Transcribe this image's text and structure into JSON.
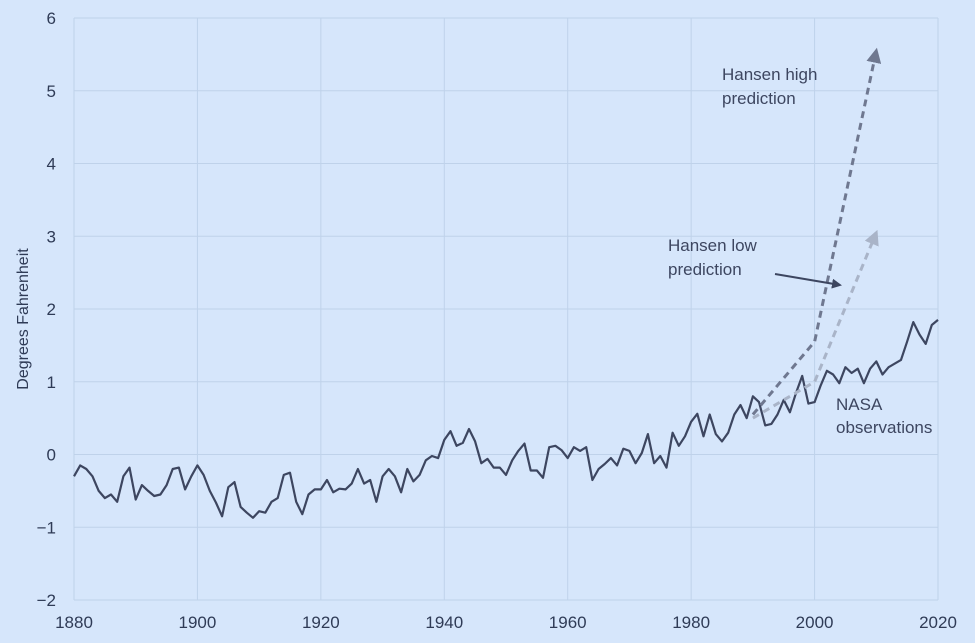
{
  "chart_data": {
    "type": "line",
    "title": "",
    "xlabel": "",
    "ylabel": "Degrees Fahrenheit",
    "xlim": [
      1880,
      2020
    ],
    "ylim": [
      -2,
      6
    ],
    "x_ticks": [
      "1880",
      "1900",
      "1920",
      "1940",
      "1960",
      "1980",
      "2000",
      "2020"
    ],
    "y_ticks": [
      "−2",
      "−1",
      "0",
      "1",
      "2",
      "3",
      "4",
      "5",
      "6"
    ],
    "grid": true,
    "colors": {
      "background": "#d6e6fb",
      "grid": "#bfd2ea",
      "observations": "#3d4660",
      "high": "#6f7890",
      "low": "#a9b4c8",
      "arrow": "#3d4660"
    },
    "annotations": {
      "high": [
        "Hansen high",
        "prediction"
      ],
      "low": [
        "Hansen low",
        "prediction"
      ],
      "observations": [
        "NASA",
        "observations"
      ]
    },
    "series": [
      {
        "style": "solid",
        "x": [
          1880,
          1881,
          1882,
          1883,
          1884,
          1885,
          1886,
          1887,
          1888,
          1889,
          1890,
          1891,
          1892,
          1893,
          1894,
          1895,
          1896,
          1897,
          1898,
          1899,
          1900,
          1901,
          1902,
          1903,
          1904,
          1905,
          1906,
          1907,
          1908,
          1909,
          1910,
          1911,
          1912,
          1913,
          1914,
          1915,
          1916,
          1917,
          1918,
          1919,
          1920,
          1921,
          1922,
          1923,
          1924,
          1925,
          1926,
          1927,
          1928,
          1929,
          1930,
          1931,
          1932,
          1933,
          1934,
          1935,
          1936,
          1937,
          1938,
          1939,
          1940,
          1941,
          1942,
          1943,
          1944,
          1945,
          1946,
          1947,
          1948,
          1949,
          1950,
          1951,
          1952,
          1953,
          1954,
          1955,
          1956,
          1957,
          1958,
          1959,
          1960,
          1961,
          1962,
          1963,
          1964,
          1965,
          1966,
          1967,
          1968,
          1969,
          1970,
          1971,
          1972,
          1973,
          1974,
          1975,
          1976,
          1977,
          1978,
          1979,
          1980,
          1981,
          1982,
          1983,
          1984,
          1985,
          1986,
          1987,
          1988,
          1989,
          1990,
          1991,
          1992,
          1993,
          1994,
          1995,
          1996,
          1997,
          1998,
          1999,
          2000,
          2001,
          2002,
          2003,
          2004,
          2005,
          2006,
          2007,
          2008,
          2009,
          2010,
          2011,
          2012,
          2013,
          2014,
          2015,
          2016,
          2017,
          2018,
          2019,
          2020
        ],
        "values": [
          -0.3,
          -0.15,
          -0.2,
          -0.3,
          -0.5,
          -0.6,
          -0.55,
          -0.65,
          -0.3,
          -0.18,
          -0.62,
          -0.42,
          -0.5,
          -0.57,
          -0.55,
          -0.42,
          -0.2,
          -0.18,
          -0.48,
          -0.3,
          -0.15,
          -0.28,
          -0.5,
          -0.66,
          -0.85,
          -0.45,
          -0.38,
          -0.72,
          -0.8,
          -0.87,
          -0.78,
          -0.8,
          -0.65,
          -0.6,
          -0.28,
          -0.25,
          -0.65,
          -0.82,
          -0.55,
          -0.48,
          -0.48,
          -0.35,
          -0.52,
          -0.47,
          -0.48,
          -0.4,
          -0.2,
          -0.4,
          -0.35,
          -0.65,
          -0.3,
          -0.2,
          -0.3,
          -0.52,
          -0.2,
          -0.37,
          -0.28,
          -0.08,
          -0.02,
          -0.05,
          0.2,
          0.32,
          0.12,
          0.16,
          0.35,
          0.18,
          -0.12,
          -0.06,
          -0.18,
          -0.18,
          -0.28,
          -0.08,
          0.05,
          0.15,
          -0.22,
          -0.22,
          -0.32,
          0.1,
          0.12,
          0.06,
          -0.05,
          0.1,
          0.05,
          0.1,
          -0.35,
          -0.2,
          -0.13,
          -0.05,
          -0.15,
          0.08,
          0.05,
          -0.12,
          0.02,
          0.28,
          -0.12,
          -0.02,
          -0.18,
          0.3,
          0.12,
          0.25,
          0.45,
          0.56,
          0.25,
          0.55,
          0.28,
          0.18,
          0.3,
          0.55,
          0.68,
          0.5,
          0.8,
          0.72,
          0.4,
          0.42,
          0.55,
          0.75,
          0.58,
          0.85,
          1.08,
          0.7,
          0.72,
          0.95,
          1.15,
          1.1,
          0.98,
          1.2,
          1.12,
          1.18,
          0.98,
          1.18,
          1.28,
          1.1,
          1.2,
          1.25,
          1.3,
          1.55,
          1.82,
          1.65,
          1.52,
          1.78,
          1.85
        ]
      },
      {
        "style": "dashed",
        "x": [
          1990,
          2000,
          2010
        ],
        "values": [
          0.55,
          1.55,
          5.55
        ]
      },
      {
        "style": "dashed",
        "x": [
          1990,
          2000,
          2010
        ],
        "values": [
          0.5,
          1.0,
          3.05
        ]
      }
    ]
  }
}
